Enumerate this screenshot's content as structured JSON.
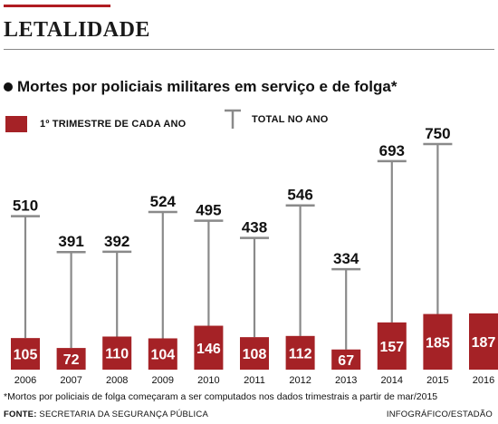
{
  "header": {
    "title": "LETALIDADE"
  },
  "subtitle": "Mortes por policiais militares em serviço e de folga*",
  "legend": {
    "quarter_label": "1º TRIMESTRE DE CADA ANO",
    "total_label": "TOTAL NO ANO"
  },
  "colors": {
    "bar": "#a52226",
    "line": "#8a8a8a",
    "accent": "#b01c22"
  },
  "footnote": "*Mortos por policiais de folga começaram a ser computados nos dados trimestrais  a partir de mar/2015",
  "source": {
    "label": "FONTE:",
    "text": "SECRETARIA DA SEGURANÇA PÚBLICA"
  },
  "credit": "INFOGRÁFICO/ESTADÃO",
  "chart_data": {
    "type": "bar",
    "categories": [
      "2006",
      "2007",
      "2008",
      "2009",
      "2010",
      "2011",
      "2012",
      "2013",
      "2014",
      "2015",
      "2016"
    ],
    "series": [
      {
        "name": "1º TRIMESTRE DE CADA ANO",
        "values": [
          105,
          72,
          110,
          104,
          146,
          108,
          112,
          67,
          157,
          185,
          187
        ]
      },
      {
        "name": "TOTAL NO ANO",
        "values": [
          510,
          391,
          392,
          524,
          495,
          438,
          546,
          334,
          693,
          750,
          null
        ]
      }
    ],
    "ylim": [
      0,
      760
    ]
  }
}
